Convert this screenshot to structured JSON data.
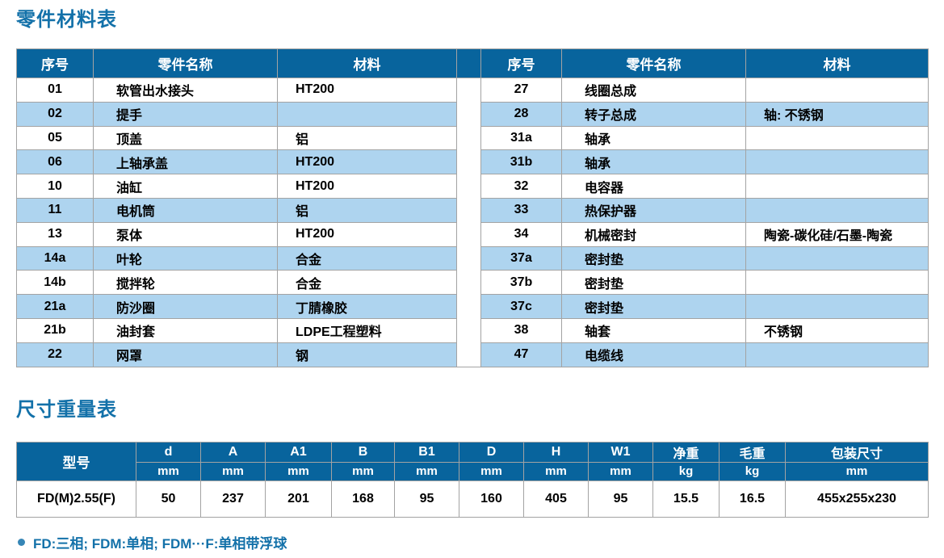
{
  "page": {
    "parts_section_title": "零件材料表",
    "dims_section_title": "尺寸重量表",
    "footnote": "FD:三相; FDM:单相; FDM···F:单相带浮球"
  },
  "colors": {
    "header_bg": "#08649d",
    "row_alt": "#aed4ef",
    "border": "#a3a3a3",
    "accent": "#1371a9"
  },
  "parts_table": {
    "headers": {
      "no": "序号",
      "name": "零件名称",
      "material": "材料"
    },
    "left_rows": [
      {
        "no": "01",
        "name": "软管出水接头",
        "material": "HT200"
      },
      {
        "no": "02",
        "name": "提手",
        "material": ""
      },
      {
        "no": "05",
        "name": "顶盖",
        "material": "铝"
      },
      {
        "no": "06",
        "name": "上轴承盖",
        "material": "HT200"
      },
      {
        "no": "10",
        "name": "油缸",
        "material": "HT200"
      },
      {
        "no": "11",
        "name": "电机筒",
        "material": "铝"
      },
      {
        "no": "13",
        "name": "泵体",
        "material": "HT200"
      },
      {
        "no": "14a",
        "name": "叶轮",
        "material": "合金"
      },
      {
        "no": "14b",
        "name": "搅拌轮",
        "material": "合金"
      },
      {
        "no": "21a",
        "name": "防沙圈",
        "material": "丁腈橡胶"
      },
      {
        "no": "21b",
        "name": "油封套",
        "material": "LDPE工程塑料"
      },
      {
        "no": "22",
        "name": "网罩",
        "material": "钢"
      }
    ],
    "right_rows": [
      {
        "no": "27",
        "name": "线圈总成",
        "material": ""
      },
      {
        "no": "28",
        "name": "转子总成",
        "material": "轴: 不锈钢"
      },
      {
        "no": "31a",
        "name": "轴承",
        "material": ""
      },
      {
        "no": "31b",
        "name": "轴承",
        "material": ""
      },
      {
        "no": "32",
        "name": "电容器",
        "material": ""
      },
      {
        "no": "33",
        "name": "热保护器",
        "material": ""
      },
      {
        "no": "34",
        "name": "机械密封",
        "material": "陶瓷-碳化硅/石墨-陶瓷"
      },
      {
        "no": "37a",
        "name": "密封垫",
        "material": ""
      },
      {
        "no": "37b",
        "name": "密封垫",
        "material": ""
      },
      {
        "no": "37c",
        "name": "密封垫",
        "material": ""
      },
      {
        "no": "38",
        "name": "轴套",
        "material": "不锈钢"
      },
      {
        "no": "47",
        "name": "电缆线",
        "material": ""
      }
    ]
  },
  "dims_table": {
    "model_header": "型号",
    "columns": [
      {
        "label": "d",
        "unit": "mm"
      },
      {
        "label": "A",
        "unit": "mm"
      },
      {
        "label": "A1",
        "unit": "mm"
      },
      {
        "label": "B",
        "unit": "mm"
      },
      {
        "label": "B1",
        "unit": "mm"
      },
      {
        "label": "D",
        "unit": "mm"
      },
      {
        "label": "H",
        "unit": "mm"
      },
      {
        "label": "W1",
        "unit": "mm"
      },
      {
        "label": "净重",
        "unit": "kg"
      },
      {
        "label": "毛重",
        "unit": "kg"
      },
      {
        "label": "包装尺寸",
        "unit": "mm"
      }
    ],
    "rows": [
      {
        "model": "FD(M)2.55(F)",
        "values": [
          "50",
          "237",
          "201",
          "168",
          "95",
          "160",
          "405",
          "95",
          "15.5",
          "16.5",
          "455x255x230"
        ]
      }
    ]
  }
}
